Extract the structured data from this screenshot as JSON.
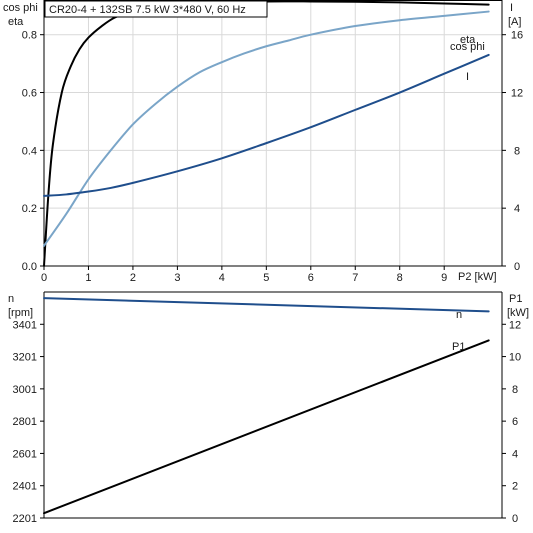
{
  "header": {
    "title": "CR20-4 + 132SB   7.5 kW   3*480 V, 60 Hz"
  },
  "colors": {
    "eta": "#000000",
    "cosphi": "#7aa5c8",
    "current": "#1f4e8c",
    "speed": "#1f4e8c",
    "power": "#000000"
  },
  "chart_data": [
    {
      "type": "line",
      "x_label": "P2 [kW]",
      "left_axis_label_1": "cos phi",
      "left_axis_label_2": "eta",
      "right_axis_label_1": "I",
      "right_axis_label_2": "[A]",
      "xlim": [
        0,
        10.3
      ],
      "x_ticks": [
        0,
        1,
        2,
        3,
        4,
        5,
        6,
        7,
        8,
        9
      ],
      "ylim_left": [
        0,
        0.92
      ],
      "y_ticks_left": [
        0.0,
        0.2,
        0.4,
        0.6,
        0.8
      ],
      "ylim_right": [
        0,
        18.4
      ],
      "y_ticks_right": [
        0,
        4,
        8,
        12,
        16
      ],
      "grid": true,
      "series": [
        {
          "name": "eta",
          "axis": "left",
          "x": [
            0,
            0.1,
            0.2,
            0.4,
            0.6,
            0.8,
            1.0,
            1.3,
            1.6,
            2.0,
            2.5,
            3.0,
            4.0,
            5.0,
            6.0,
            7.0,
            8.0,
            9.0,
            10.0
          ],
          "y": [
            0,
            0.25,
            0.42,
            0.6,
            0.69,
            0.75,
            0.79,
            0.83,
            0.86,
            0.88,
            0.896,
            0.905,
            0.912,
            0.915,
            0.915,
            0.914,
            0.912,
            0.908,
            0.904
          ]
        },
        {
          "name": "cos phi",
          "axis": "left",
          "x": [
            0,
            0.5,
            1.0,
            1.5,
            2.0,
            2.5,
            3.0,
            3.5,
            4.0,
            4.5,
            5.0,
            5.5,
            6.0,
            7.0,
            8.0,
            9.0,
            10.0
          ],
          "y": [
            0.07,
            0.18,
            0.3,
            0.4,
            0.49,
            0.56,
            0.62,
            0.67,
            0.705,
            0.735,
            0.76,
            0.78,
            0.8,
            0.83,
            0.85,
            0.865,
            0.88
          ]
        },
        {
          "name": "I",
          "axis": "right",
          "x": [
            0,
            0.5,
            1.0,
            1.5,
            2.0,
            3.0,
            4.0,
            5.0,
            6.0,
            7.0,
            8.0,
            9.0,
            10.0
          ],
          "y": [
            4.85,
            4.95,
            5.15,
            5.4,
            5.75,
            6.55,
            7.45,
            8.5,
            9.6,
            10.8,
            12.0,
            13.3,
            14.6
          ]
        }
      ]
    },
    {
      "type": "line",
      "left_axis_label_1": "n",
      "left_axis_label_2": "[rpm]",
      "right_axis_label_1": "P1",
      "right_axis_label_2": "[kW]",
      "xlim": [
        0,
        10.3
      ],
      "ylim_left": [
        2201,
        3601
      ],
      "y_ticks_left": [
        2201,
        2401,
        2601,
        2801,
        3001,
        3201,
        3401
      ],
      "ylim_right": [
        0,
        14
      ],
      "y_ticks_right": [
        0,
        2,
        4,
        6,
        8,
        10,
        12
      ],
      "grid": false,
      "series": [
        {
          "name": "n",
          "axis": "left",
          "x": [
            0,
            10.0
          ],
          "y": [
            3563,
            3481
          ]
        },
        {
          "name": "P1",
          "axis": "right",
          "x": [
            0,
            10.0
          ],
          "y": [
            0.3,
            11.0
          ]
        }
      ]
    }
  ]
}
